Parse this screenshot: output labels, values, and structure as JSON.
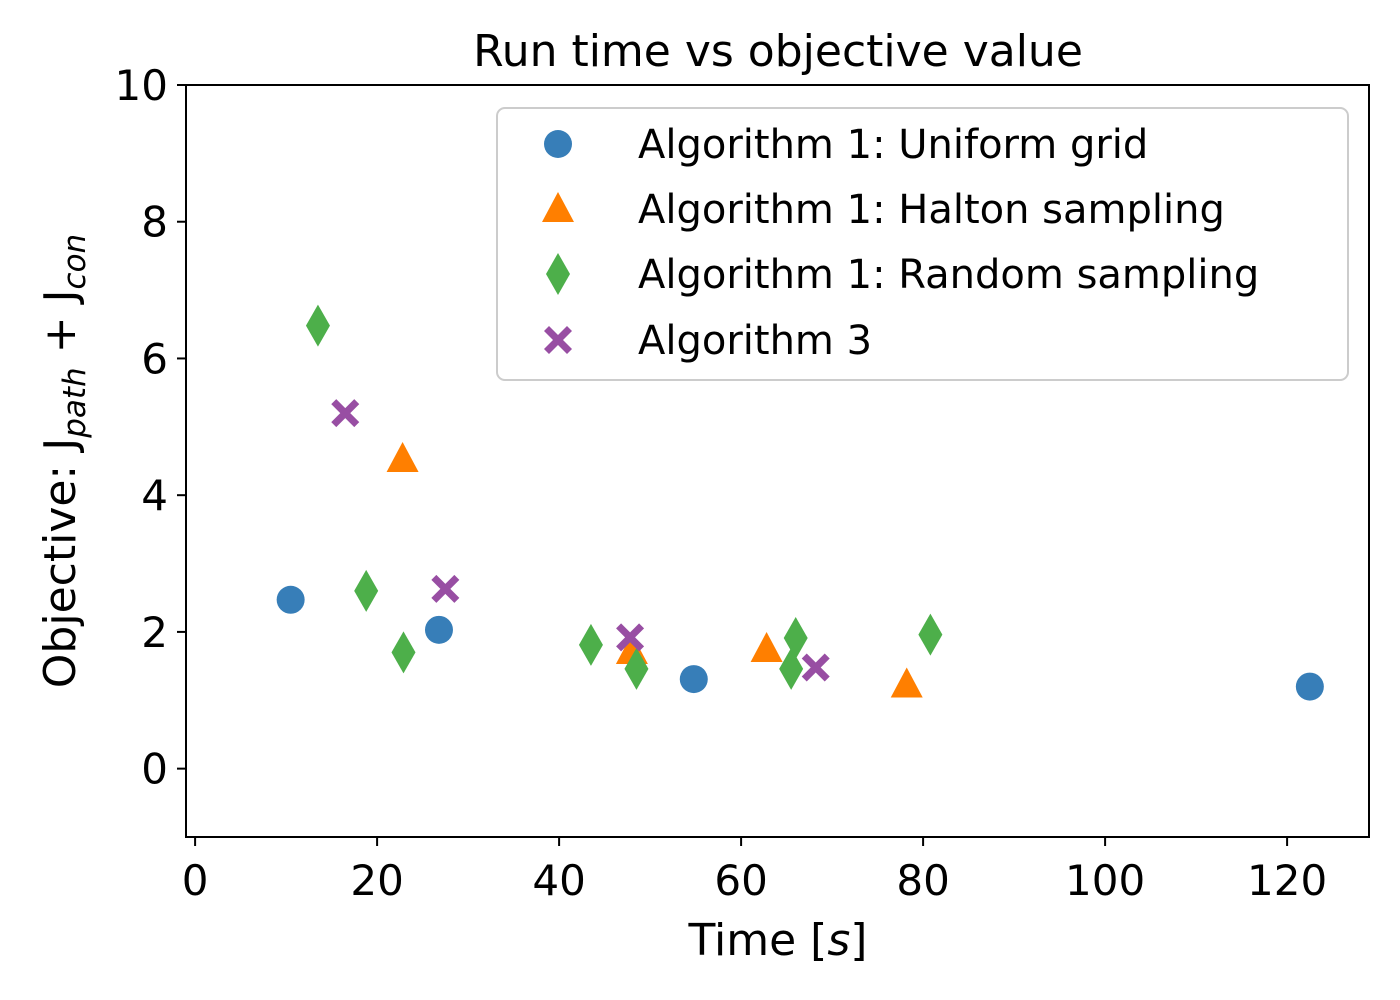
{
  "chart_data": {
    "type": "scatter",
    "title": "Run time vs objective value",
    "xlabel": {
      "prefix": "Time [",
      "var": "s",
      "suffix": "]"
    },
    "ylabel": {
      "prefix": "Objective: J",
      "sub1": "path",
      "middle": " + J",
      "sub2": "con"
    },
    "xlim": [
      -1,
      129
    ],
    "ylim": [
      -1,
      10
    ],
    "xticks": [
      0,
      20,
      40,
      60,
      80,
      100,
      120
    ],
    "yticks": [
      0,
      2,
      4,
      6,
      8,
      10
    ],
    "grid": false,
    "legend_position": "top-right",
    "series": [
      {
        "name": "Algorithm 1: Uniform grid",
        "marker": "circle",
        "color": "#377eb8",
        "points": [
          [
            10.5,
            2.47
          ],
          [
            26.8,
            2.03
          ],
          [
            54.8,
            1.31
          ],
          [
            122.5,
            1.2
          ]
        ]
      },
      {
        "name": "Algorithm 1: Halton sampling",
        "marker": "triangle",
        "color": "#ff7f00",
        "points": [
          [
            22.8,
            4.53
          ],
          [
            48.0,
            1.72
          ],
          [
            62.8,
            1.75
          ],
          [
            78.2,
            1.23
          ]
        ]
      },
      {
        "name": "Algorithm 1: Random sampling",
        "marker": "diamond",
        "color": "#4daf4a",
        "points": [
          [
            13.5,
            6.48
          ],
          [
            18.8,
            2.6
          ],
          [
            22.9,
            1.7
          ],
          [
            43.5,
            1.81
          ],
          [
            48.5,
            1.46
          ],
          [
            65.5,
            1.46
          ],
          [
            66.0,
            1.91
          ],
          [
            80.8,
            1.96
          ]
        ]
      },
      {
        "name": "Algorithm 3",
        "marker": "x",
        "color": "#984ea3",
        "points": [
          [
            16.5,
            5.2
          ],
          [
            27.5,
            2.63
          ],
          [
            47.8,
            1.92
          ],
          [
            68.2,
            1.48
          ]
        ]
      }
    ]
  }
}
